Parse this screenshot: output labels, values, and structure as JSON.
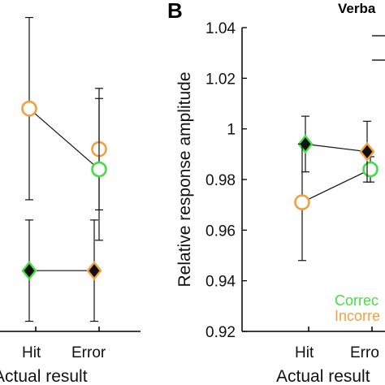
{
  "chart_data": [
    {
      "type": "scatter",
      "panel": "A",
      "title": "",
      "xlabel": "Actual result",
      "ylabel": "",
      "categories": [
        "Hit",
        "Error"
      ],
      "series": [
        {
          "marker": "circle",
          "color": "#f0a040",
          "values": [
            1.62,
            1.58
          ],
          "err": [
            0.09,
            0.06
          ]
        },
        {
          "marker": "circle",
          "color": "#44dd44",
          "values": [
            null,
            1.56
          ],
          "err": [
            null,
            0.07
          ]
        },
        {
          "marker": "diamond",
          "color": "#44dd44",
          "values": [
            1.46,
            null
          ],
          "err": [
            0.05,
            null
          ]
        },
        {
          "marker": "diamond",
          "color": "#f0a040",
          "values": [
            null,
            1.46
          ],
          "err": [
            null,
            0.05
          ]
        }
      ],
      "grid": false
    },
    {
      "type": "scatter",
      "panel": "B",
      "title": "Verba",
      "xlabel": "Actual result",
      "ylabel": "Relative response amplitude",
      "categories": [
        "Hit",
        "Error"
      ],
      "yticks": [
        "0.92",
        "0.94",
        "0.96",
        "0.98",
        "1",
        "1.02",
        "1.04"
      ],
      "ylim": [
        0.92,
        1.04
      ],
      "series": [
        {
          "name": "Correct",
          "marker": "diamond",
          "color": "#44dd44",
          "values": [
            0.994,
            null
          ],
          "err": [
            0.011,
            null
          ]
        },
        {
          "name": "Correct",
          "marker": "circle",
          "color": "#44dd44",
          "values": [
            null,
            0.984
          ],
          "err": [
            null,
            0.005
          ]
        },
        {
          "name": "Incorrect",
          "marker": "circle",
          "color": "#f0a040",
          "values": [
            0.971,
            null
          ],
          "err": [
            0.023,
            null
          ]
        },
        {
          "name": "Incorrect",
          "marker": "diamond",
          "color": "#f0a040",
          "values": [
            null,
            0.991
          ],
          "err": [
            null,
            0.012
          ]
        }
      ],
      "legend": {
        "placement": "bottom-right",
        "entries": [
          "Correc",
          "Incorre"
        ]
      },
      "grid": false
    }
  ],
  "panelA": {
    "letter": "",
    "xticks": [
      "Hit",
      "Error"
    ],
    "xlabel": "Actual result"
  },
  "panelB": {
    "letter": "B",
    "title": "Verba",
    "ylabel": "Relative response amplitude",
    "xticks": [
      "Hit",
      "Erro"
    ],
    "xlabel": "Actual result",
    "legend": [
      "Correc",
      "Incorre"
    ]
  },
  "colors": {
    "green": "#44dd44",
    "orange": "#f0a040",
    "black": "#111111"
  }
}
